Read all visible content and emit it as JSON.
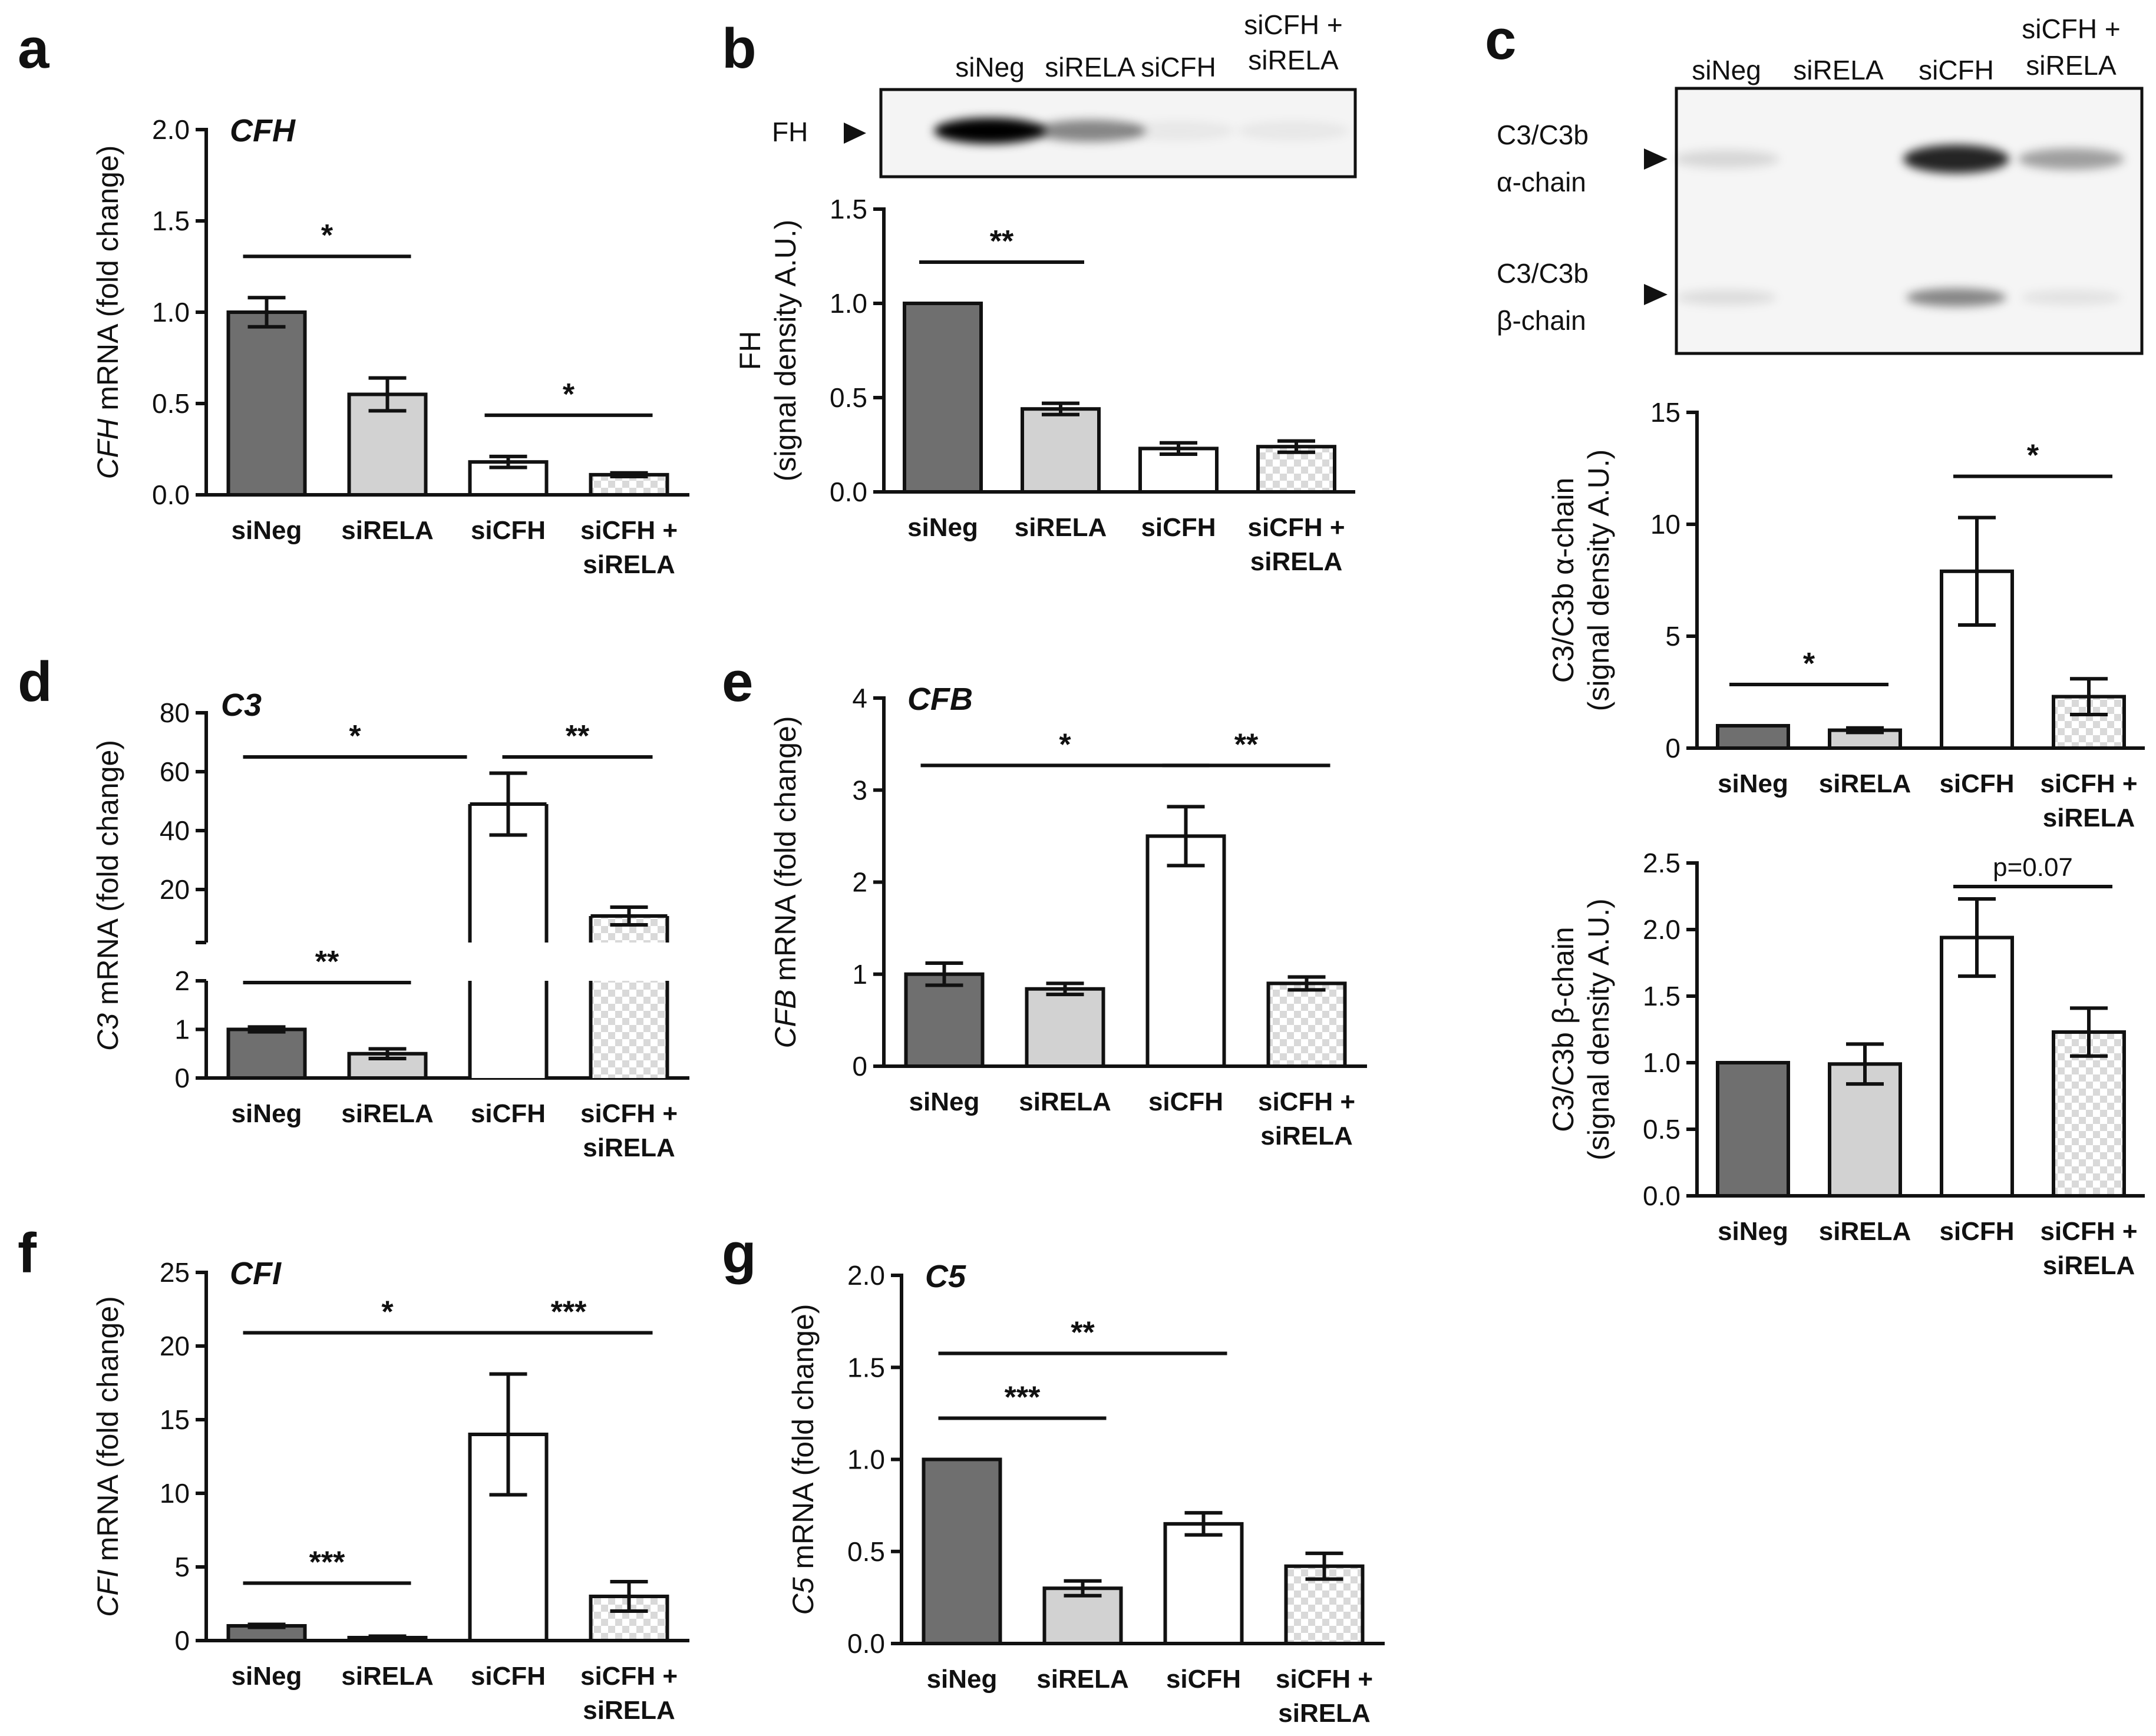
{
  "colors": {
    "siNeg": "#6f6f6f",
    "siRELA": "#d2d2d2",
    "siCFH": "#ffffff",
    "siCFH_siRELA": "checker",
    "axis": "#111111"
  },
  "groups": [
    "siNeg",
    "siRELA",
    "siCFH",
    "siCFH +|siRELA"
  ],
  "blots": {
    "b": {
      "lanes": [
        "siNeg",
        "siRELA",
        "siCFH",
        "siCFH +|siRELA"
      ],
      "band_label": "FH",
      "band_intensity": [
        1.0,
        0.45,
        0.05,
        0.05
      ]
    },
    "c": {
      "lanes": [
        "siNeg",
        "siRELA",
        "siCFH",
        "siCFH +|siRELA"
      ],
      "band_labels": [
        {
          "line1": "C3/C3b",
          "line2": "α-chain"
        },
        {
          "line1": "C3/C3b",
          "line2": "β-chain"
        }
      ],
      "alpha_intensity": [
        0.12,
        0.0,
        0.85,
        0.35
      ],
      "beta_intensity": [
        0.1,
        0.0,
        0.45,
        0.08
      ]
    }
  },
  "chart_data": [
    {
      "panel": "a",
      "type": "bar",
      "gene": "CFH",
      "ylabel_italic": "CFH",
      "ylabel": " mRNA (fold change)",
      "categories": [
        "siNeg",
        "siRELA",
        "siCFH",
        "siCFH + siRELA"
      ],
      "values": [
        1.0,
        0.55,
        0.18,
        0.11
      ],
      "errors": [
        0.08,
        0.09,
        0.03,
        0.01
      ],
      "ylim": [
        0,
        2.0
      ],
      "yticks": [
        {
          "v": 0,
          "l": "0.0"
        },
        {
          "v": 0.5,
          "l": "0.5"
        },
        {
          "v": 1.0,
          "l": "1.0"
        },
        {
          "v": 1.5,
          "l": "1.5"
        },
        {
          "v": 2.0,
          "l": "2.0"
        }
      ],
      "significance": [
        {
          "from": 0,
          "to": 1,
          "label": "*"
        },
        {
          "from": 2,
          "to": 3,
          "label": "*"
        }
      ]
    },
    {
      "panel": "b",
      "type": "bar",
      "gene": "",
      "ylabel_line1": "FH",
      "ylabel_line2": "(signal density A.U.)",
      "categories": [
        "siNeg",
        "siRELA",
        "siCFH",
        "siCFH + siRELA"
      ],
      "values": [
        1.0,
        0.44,
        0.23,
        0.24
      ],
      "errors": [
        0.0,
        0.03,
        0.03,
        0.03
      ],
      "ylim": [
        0,
        1.5
      ],
      "yticks": [
        {
          "v": 0,
          "l": "0.0"
        },
        {
          "v": 0.5,
          "l": "0.5"
        },
        {
          "v": 1.0,
          "l": "1.0"
        },
        {
          "v": 1.5,
          "l": "1.5"
        }
      ],
      "significance": [
        {
          "from": 0,
          "to": 1,
          "label": "**"
        }
      ]
    },
    {
      "panel": "c1",
      "type": "bar",
      "gene": "",
      "ylabel_line1": "C3/C3b α-chain",
      "ylabel_line2": "(signal density A.U.)",
      "categories": [
        "siNeg",
        "siRELA",
        "siCFH",
        "siCFH + siRELA"
      ],
      "values": [
        1.0,
        0.8,
        7.9,
        2.3
      ],
      "errors": [
        0.0,
        0.1,
        2.4,
        0.8
      ],
      "ylim": [
        0,
        15
      ],
      "yticks": [
        {
          "v": 0,
          "l": "0"
        },
        {
          "v": 5,
          "l": "5"
        },
        {
          "v": 10,
          "l": "10"
        },
        {
          "v": 15,
          "l": "15"
        }
      ],
      "significance": [
        {
          "from": 0,
          "to": 1,
          "label": "*"
        },
        {
          "from": 2,
          "to": 3,
          "label": "*"
        }
      ]
    },
    {
      "panel": "c2",
      "type": "bar",
      "gene": "",
      "ylabel_line1": "C3/C3b β-chain",
      "ylabel_line2": "(signal density A.U.)",
      "categories": [
        "siNeg",
        "siRELA",
        "siCFH",
        "siCFH + siRELA"
      ],
      "values": [
        1.0,
        0.99,
        1.94,
        1.23
      ],
      "errors": [
        0.0,
        0.15,
        0.29,
        0.18
      ],
      "ylim": [
        0,
        2.5
      ],
      "yticks": [
        {
          "v": 0,
          "l": "0.0"
        },
        {
          "v": 0.5,
          "l": "0.5"
        },
        {
          "v": 1.0,
          "l": "1.0"
        },
        {
          "v": 1.5,
          "l": "1.5"
        },
        {
          "v": 2.0,
          "l": "2.0"
        },
        {
          "v": 2.5,
          "l": "2.5"
        }
      ],
      "significance": [
        {
          "from": 2,
          "to": 3,
          "label": "p=0.07"
        }
      ]
    },
    {
      "panel": "d",
      "type": "bar",
      "gene": "C3",
      "broken_axis": true,
      "ylabel_italic": "C3",
      "ylabel": " mRNA (fold change)",
      "categories": [
        "siNeg",
        "siRELA",
        "siCFH",
        "siCFH + siRELA"
      ],
      "values": [
        1.0,
        0.5,
        49.0,
        11.0
      ],
      "errors": [
        0.05,
        0.1,
        10.5,
        3.0
      ],
      "ylim_lower": [
        0,
        2
      ],
      "ylim_upper": [
        2,
        80
      ],
      "yticks_lower": [
        {
          "v": 0,
          "l": "0"
        },
        {
          "v": 1,
          "l": "1"
        },
        {
          "v": 2,
          "l": "2"
        }
      ],
      "yticks_upper": [
        {
          "v": 20,
          "l": "20"
        },
        {
          "v": 40,
          "l": "40"
        },
        {
          "v": 60,
          "l": "60"
        },
        {
          "v": 80,
          "l": "80"
        }
      ],
      "significance": [
        {
          "from": 0,
          "to": 1,
          "label": "**"
        },
        {
          "from": 0,
          "to": 2,
          "label": "*"
        },
        {
          "from": 2,
          "to": 3,
          "label": "**"
        }
      ]
    },
    {
      "panel": "e",
      "type": "bar",
      "gene": "CFB",
      "ylabel_italic": "CFB",
      "ylabel": " mRNA (fold change)",
      "categories": [
        "siNeg",
        "siRELA",
        "siCFH",
        "siCFH + siRELA"
      ],
      "values": [
        1.0,
        0.84,
        2.5,
        0.9
      ],
      "errors": [
        0.12,
        0.06,
        0.32,
        0.07
      ],
      "ylim": [
        0,
        4
      ],
      "yticks": [
        {
          "v": 0,
          "l": "0"
        },
        {
          "v": 1,
          "l": "1"
        },
        {
          "v": 2,
          "l": "2"
        },
        {
          "v": 3,
          "l": "3"
        },
        {
          "v": 4,
          "l": "4"
        }
      ],
      "significance": [
        {
          "from": 0,
          "to": 2,
          "label": "*"
        },
        {
          "from": 2,
          "to": 3,
          "label": "**"
        }
      ]
    },
    {
      "panel": "f",
      "type": "bar",
      "gene": "CFI",
      "ylabel_italic": "CFI",
      "ylabel": " mRNA (fold change)",
      "categories": [
        "siNeg",
        "siRELA",
        "siCFH",
        "siCFH + siRELA"
      ],
      "values": [
        1.0,
        0.2,
        14.0,
        3.0
      ],
      "errors": [
        0.1,
        0.1,
        4.1,
        1.0
      ],
      "ylim": [
        0,
        25
      ],
      "yticks": [
        {
          "v": 0,
          "l": "0"
        },
        {
          "v": 5,
          "l": "5"
        },
        {
          "v": 10,
          "l": "10"
        },
        {
          "v": 15,
          "l": "15"
        },
        {
          "v": 20,
          "l": "20"
        },
        {
          "v": 25,
          "l": "25"
        }
      ],
      "significance": [
        {
          "from": 0,
          "to": 1,
          "label": "***"
        },
        {
          "from": 0,
          "to": 2,
          "label": "*"
        },
        {
          "from": 2,
          "to": 3,
          "label": "***"
        }
      ]
    },
    {
      "panel": "g",
      "type": "bar",
      "gene": "C5",
      "ylabel_italic": "C5",
      "ylabel": " mRNA (fold change)",
      "categories": [
        "siNeg",
        "siRELA",
        "siCFH",
        "siCFH + siRELA"
      ],
      "values": [
        1.0,
        0.3,
        0.65,
        0.42
      ],
      "errors": [
        0.0,
        0.04,
        0.06,
        0.07
      ],
      "ylim": [
        0,
        2.0
      ],
      "yticks": [
        {
          "v": 0,
          "l": "0.0"
        },
        {
          "v": 0.5,
          "l": "0.5"
        },
        {
          "v": 1.0,
          "l": "1.0"
        },
        {
          "v": 1.5,
          "l": "1.5"
        },
        {
          "v": 2.0,
          "l": "2.0"
        }
      ],
      "significance": [
        {
          "from": 0,
          "to": 1,
          "label": "***"
        },
        {
          "from": 0,
          "to": 2,
          "label": "**"
        }
      ]
    }
  ]
}
